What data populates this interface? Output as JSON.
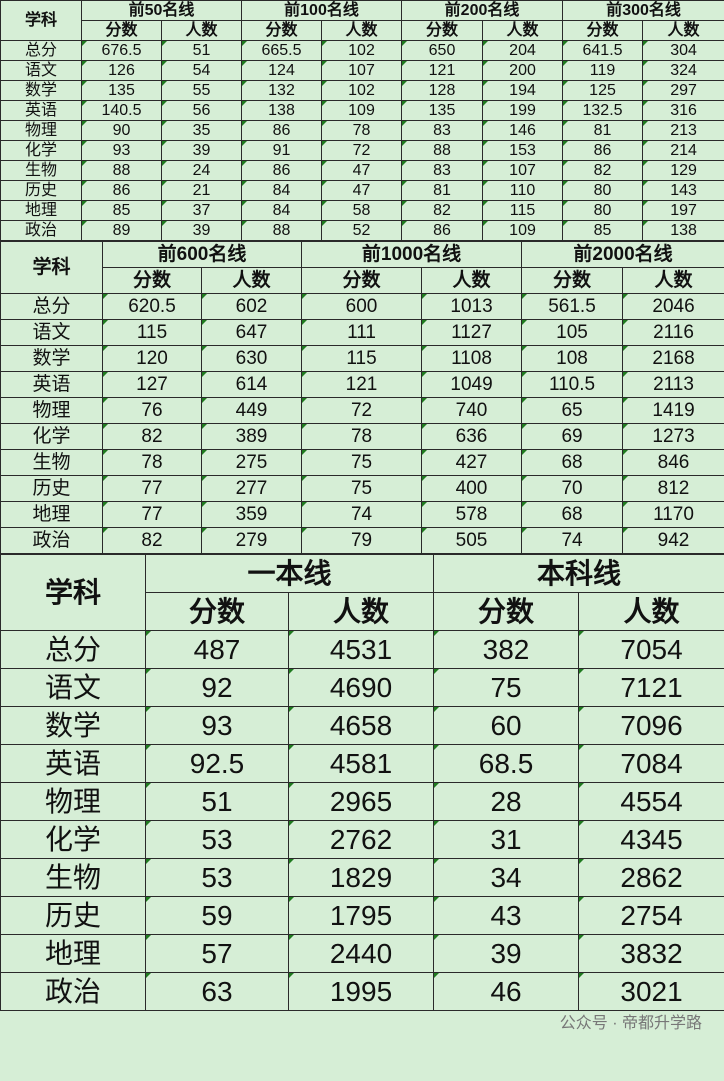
{
  "colors": {
    "background": "#d6eed6",
    "border": "#2a2a2a",
    "cell_marker": "#1f7a1f"
  },
  "tables": [
    {
      "subject_header": "学科",
      "groups": [
        "前50名线",
        "前100名线",
        "前200名线",
        "前300名线"
      ],
      "sub_headers": [
        "分数",
        "人数"
      ],
      "rows": [
        [
          "总分",
          "676.5",
          "51",
          "665.5",
          "102",
          "650",
          "204",
          "641.5",
          "304"
        ],
        [
          "语文",
          "126",
          "54",
          "124",
          "107",
          "121",
          "200",
          "119",
          "324"
        ],
        [
          "数学",
          "135",
          "55",
          "132",
          "102",
          "128",
          "194",
          "125",
          "297"
        ],
        [
          "英语",
          "140.5",
          "56",
          "138",
          "109",
          "135",
          "199",
          "132.5",
          "316"
        ],
        [
          "物理",
          "90",
          "35",
          "86",
          "78",
          "83",
          "146",
          "81",
          "213"
        ],
        [
          "化学",
          "93",
          "39",
          "91",
          "72",
          "88",
          "153",
          "86",
          "214"
        ],
        [
          "生物",
          "88",
          "24",
          "86",
          "47",
          "83",
          "107",
          "82",
          "129"
        ],
        [
          "历史",
          "86",
          "21",
          "84",
          "47",
          "81",
          "110",
          "80",
          "143"
        ],
        [
          "地理",
          "85",
          "37",
          "84",
          "58",
          "82",
          "115",
          "80",
          "197"
        ],
        [
          "政治",
          "89",
          "39",
          "88",
          "52",
          "86",
          "109",
          "85",
          "138"
        ]
      ]
    },
    {
      "subject_header": "学科",
      "groups": [
        "前600名线",
        "前1000名线",
        "前2000名线"
      ],
      "sub_headers": [
        "分数",
        "人数"
      ],
      "rows": [
        [
          "总分",
          "620.5",
          "602",
          "600",
          "1013",
          "561.5",
          "2046"
        ],
        [
          "语文",
          "115",
          "647",
          "111",
          "1127",
          "105",
          "2116"
        ],
        [
          "数学",
          "120",
          "630",
          "115",
          "1108",
          "108",
          "2168"
        ],
        [
          "英语",
          "127",
          "614",
          "121",
          "1049",
          "110.5",
          "2113"
        ],
        [
          "物理",
          "76",
          "449",
          "72",
          "740",
          "65",
          "1419"
        ],
        [
          "化学",
          "82",
          "389",
          "78",
          "636",
          "69",
          "1273"
        ],
        [
          "生物",
          "78",
          "275",
          "75",
          "427",
          "68",
          "846"
        ],
        [
          "历史",
          "77",
          "277",
          "75",
          "400",
          "70",
          "812"
        ],
        [
          "地理",
          "77",
          "359",
          "74",
          "578",
          "68",
          "1170"
        ],
        [
          "政治",
          "82",
          "279",
          "79",
          "505",
          "74",
          "942"
        ]
      ]
    },
    {
      "subject_header": "学科",
      "groups": [
        "一本线",
        "本科线"
      ],
      "sub_headers": [
        "分数",
        "人数"
      ],
      "rows": [
        [
          "总分",
          "487",
          "4531",
          "382",
          "7054"
        ],
        [
          "语文",
          "92",
          "4690",
          "75",
          "7121"
        ],
        [
          "数学",
          "93",
          "4658",
          "60",
          "7096"
        ],
        [
          "英语",
          "92.5",
          "4581",
          "68.5",
          "7084"
        ],
        [
          "物理",
          "51",
          "2965",
          "28",
          "4554"
        ],
        [
          "化学",
          "53",
          "2762",
          "31",
          "4345"
        ],
        [
          "生物",
          "53",
          "1829",
          "34",
          "2862"
        ],
        [
          "历史",
          "59",
          "1795",
          "43",
          "2754"
        ],
        [
          "地理",
          "57",
          "2440",
          "39",
          "3832"
        ],
        [
          "政治",
          "63",
          "1995",
          "46",
          "3021"
        ]
      ]
    }
  ],
  "watermark": "公众号 · 帝都升学路"
}
